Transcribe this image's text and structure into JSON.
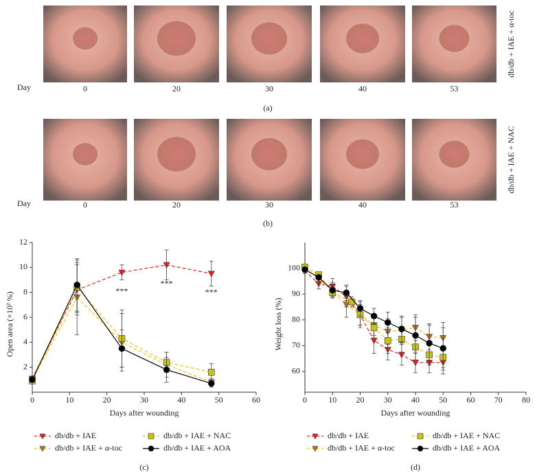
{
  "panel_a": {
    "day_label": "Day",
    "days": [
      "0",
      "20",
      "30",
      "40",
      "53"
    ],
    "group": "db/db + IAE + α-toc",
    "caption": "(a)"
  },
  "panel_b": {
    "day_label": "Day",
    "days": [
      "0",
      "20",
      "30",
      "40",
      "53"
    ],
    "group": "db/db + IAE + NAC",
    "caption": "(b)"
  },
  "chart_data": [
    {
      "type": "line",
      "caption": "(c)",
      "x_label": "Days after wounding",
      "y_label": "Open area (×10² %)",
      "xlim": [
        0,
        60
      ],
      "xticks": [
        0,
        10,
        20,
        30,
        40,
        50,
        60
      ],
      "ylim": [
        0,
        12
      ],
      "yticks": [
        2,
        4,
        6,
        8,
        10,
        12
      ],
      "annotations": [
        "***",
        "***",
        "***"
      ],
      "series": [
        {
          "name": "db/db + IAE",
          "color": "#e0201b",
          "marker_color": "#e0201b",
          "marker": "triangle-down",
          "dashed": true,
          "x": [
            0,
            12,
            24,
            36,
            48
          ],
          "values": [
            1.1,
            8.2,
            9.6,
            10.2,
            9.5
          ],
          "errors": [
            0.2,
            2.0,
            0.6,
            1.2,
            1.0
          ]
        },
        {
          "name": "db/db + IAE + α-toc",
          "color": "#e8c520",
          "marker_color": "#b8732a",
          "marker": "triangle-down",
          "dashed": true,
          "x": [
            0,
            12,
            24,
            36,
            48
          ],
          "values": [
            1.0,
            7.6,
            4.0,
            2.2,
            0.8
          ],
          "errors": [
            0.2,
            3.0,
            2.3,
            1.0,
            0.3
          ]
        },
        {
          "name": "db/db + IAE + NAC",
          "color": "#e8c520",
          "marker_color": "#c8c21a",
          "marker": "square",
          "dashed": true,
          "x": [
            0,
            12,
            24,
            36,
            48
          ],
          "values": [
            0.9,
            8.4,
            4.3,
            2.4,
            1.6
          ],
          "errors": [
            0.2,
            2.0,
            2.3,
            0.8,
            0.7
          ]
        },
        {
          "name": "db/db + IAE + AOA",
          "color": "#000000",
          "marker_color": "#000000",
          "marker": "circle",
          "dashed": false,
          "x": [
            0,
            12,
            24,
            36,
            48
          ],
          "values": [
            1.0,
            8.6,
            3.5,
            1.8,
            0.7
          ],
          "errors": [
            0.2,
            2.1,
            1.5,
            1.0,
            0.3
          ]
        }
      ]
    },
    {
      "type": "line",
      "caption": "(d)",
      "x_label": "Days after wounding",
      "y_label": "Weight loss (%)",
      "xlim": [
        0,
        80
      ],
      "xticks": [
        0,
        10,
        20,
        30,
        40,
        50,
        60,
        70,
        80
      ],
      "ylim": [
        52,
        110
      ],
      "yticks": [
        60,
        70,
        80,
        90,
        100
      ],
      "series": [
        {
          "name": "db/db + IAE",
          "color": "#e0201b",
          "marker_color": "#e0201b",
          "marker": "triangle-down",
          "dashed": true,
          "x": [
            0,
            5,
            10,
            15,
            20,
            25,
            30,
            35,
            40,
            45,
            50
          ],
          "values": [
            99,
            94,
            93,
            89,
            82,
            72,
            68.5,
            66.5,
            63.5,
            63.5,
            63.5
          ],
          "errors": [
            1,
            2,
            3,
            4,
            5,
            5,
            4,
            4,
            4,
            4,
            3
          ]
        },
        {
          "name": "db/db + IAE + α-toc",
          "color": "#e8c520",
          "marker_color": "#b8732a",
          "marker": "triangle-down",
          "dashed": true,
          "x": [
            0,
            5,
            10,
            15,
            20,
            25,
            30,
            35,
            40,
            45,
            50
          ],
          "values": [
            100,
            96,
            91,
            86,
            82,
            78,
            75.5,
            76,
            77,
            73.5,
            73
          ],
          "errors": [
            1,
            2,
            2,
            5,
            4,
            4,
            5,
            5,
            5,
            5,
            4
          ]
        },
        {
          "name": "db/db + IAE + NAC",
          "color": "#e8c520",
          "marker_color": "#c8c21a",
          "marker": "square",
          "dashed": true,
          "x": [
            0,
            5,
            10,
            17,
            20,
            25,
            30,
            35,
            40,
            45,
            50
          ],
          "values": [
            100.5,
            97.5,
            90.5,
            87,
            82,
            77,
            72,
            72.5,
            69.5,
            66.5,
            65.5
          ],
          "errors": [
            1,
            1,
            2,
            2,
            4,
            4,
            5,
            5,
            5,
            4,
            4
          ]
        },
        {
          "name": "db/db + IAE + AOA",
          "color": "#000000",
          "marker_color": "#000000",
          "marker": "circle",
          "dashed": false,
          "x": [
            0,
            5,
            10,
            15,
            20,
            25,
            30,
            35,
            40,
            45,
            50
          ],
          "values": [
            99.5,
            96.5,
            91.5,
            90.5,
            84.5,
            81.5,
            79,
            76.5,
            74,
            71,
            69
          ],
          "errors": [
            1,
            1,
            3,
            3,
            3,
            3,
            4,
            5,
            7,
            7,
            10
          ]
        }
      ]
    }
  ]
}
